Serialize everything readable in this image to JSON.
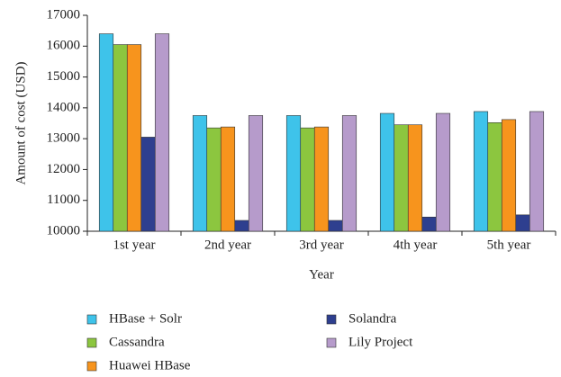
{
  "chart_data": {
    "type": "bar",
    "x_label": "Year",
    "y_label": "Amount of cost (USD)",
    "categories": [
      "1st year",
      "2nd year",
      "3rd year",
      "4th year",
      "5th year"
    ],
    "series": [
      {
        "name": "HBase + Solr",
        "color": "#3ec3ea",
        "values": [
          16400,
          13750,
          13750,
          13820,
          13880
        ]
      },
      {
        "name": "Cassandra",
        "color": "#8cc63f",
        "values": [
          16050,
          13350,
          13350,
          13450,
          13520
        ]
      },
      {
        "name": "Huawei HBase",
        "color": "#f7941d",
        "values": [
          16050,
          13380,
          13380,
          13450,
          13620
        ]
      },
      {
        "name": "Solandra",
        "color": "#2e3f8f",
        "values": [
          13050,
          10350,
          10350,
          10460,
          10530
        ]
      },
      {
        "name": "Lily Project",
        "color": "#b69bcb",
        "values": [
          16400,
          13750,
          13750,
          13820,
          13880
        ]
      }
    ],
    "ylim": [
      10000,
      17000
    ],
    "yticks": [
      10000,
      11000,
      12000,
      13000,
      14000,
      15000,
      16000,
      17000
    ],
    "grid": false
  }
}
